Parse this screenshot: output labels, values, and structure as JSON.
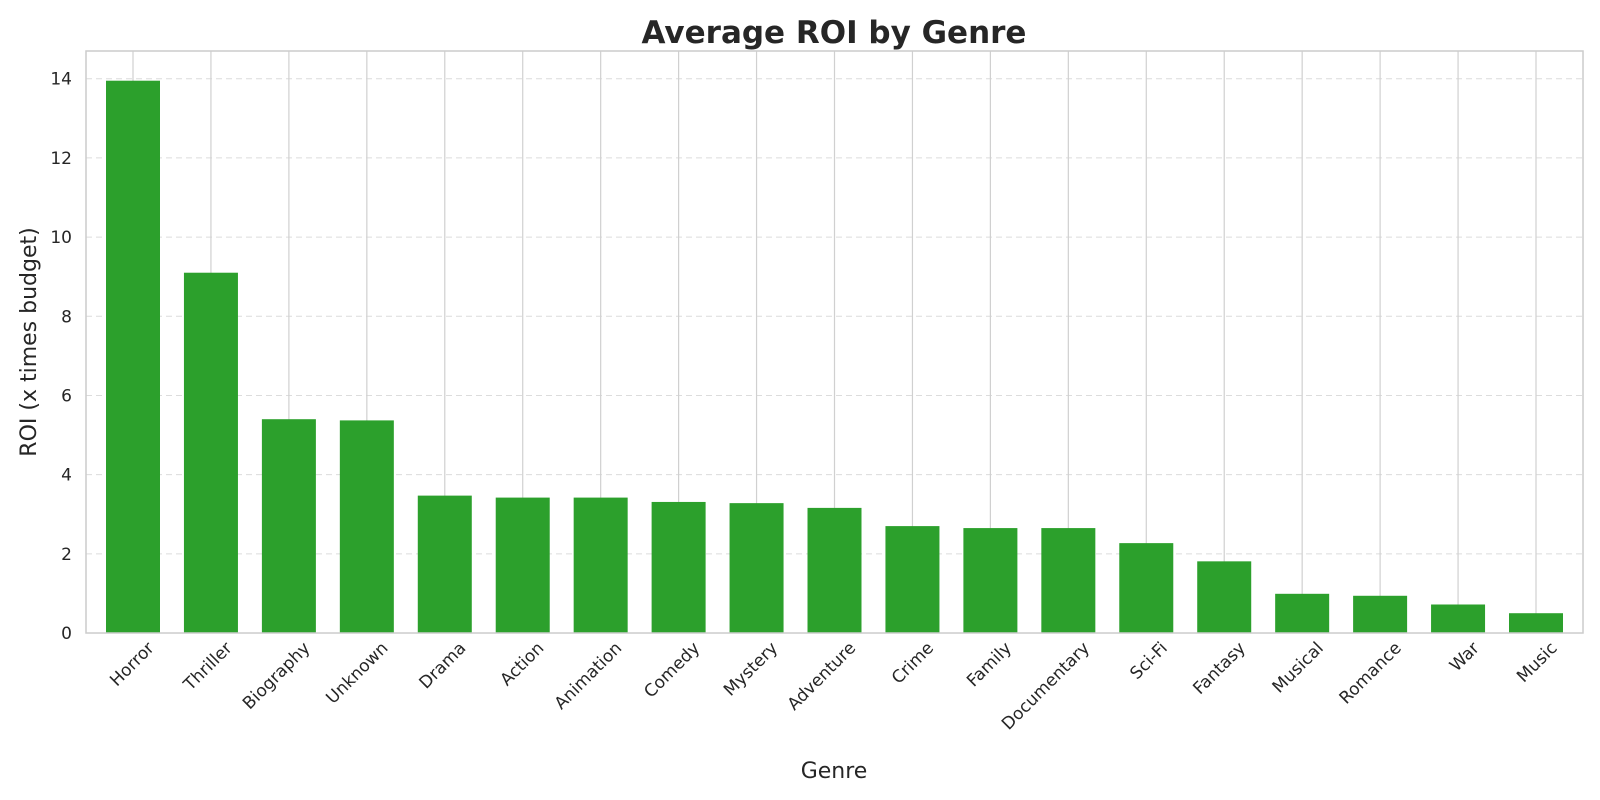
{
  "chart_data": {
    "type": "bar",
    "title": "Average ROI by Genre",
    "xlabel": "Genre",
    "ylabel": "ROI (x times budget)",
    "categories": [
      "Horror",
      "Thriller",
      "Biography",
      "Unknown",
      "Drama",
      "Action",
      "Animation",
      "Comedy",
      "Mystery",
      "Adventure",
      "Crime",
      "Family",
      "Documentary",
      "Sci-Fi",
      "Fantasy",
      "Musical",
      "Romance",
      "War",
      "Music"
    ],
    "values": [
      13.95,
      9.1,
      5.4,
      5.37,
      3.47,
      3.42,
      3.42,
      3.31,
      3.28,
      3.16,
      2.7,
      2.65,
      2.65,
      2.27,
      1.81,
      0.99,
      0.94,
      0.72,
      0.5
    ],
    "yticks": [
      0,
      2,
      4,
      6,
      8,
      10,
      12,
      14
    ],
    "ylim": [
      0,
      14.7
    ],
    "grid": true,
    "bar_color": "#2ca02c"
  }
}
